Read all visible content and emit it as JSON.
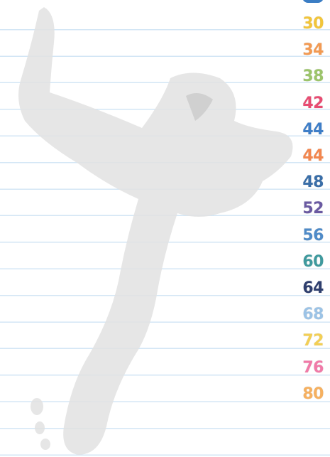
{
  "numbers": [
    "30",
    "34",
    "38",
    "42",
    "44",
    "44",
    "48",
    "52",
    "56",
    "60",
    "64",
    "68",
    "72",
    "76",
    "80"
  ]
}
